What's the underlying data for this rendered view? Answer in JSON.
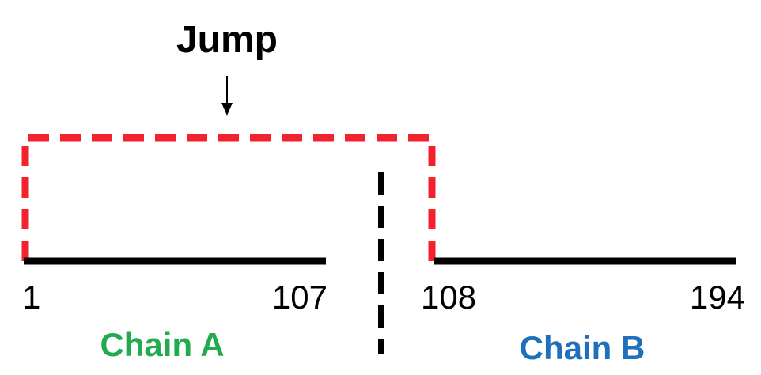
{
  "jump": {
    "label": "Jump"
  },
  "chain_a": {
    "label": "Chain A",
    "start": "1",
    "end": "107",
    "color": "#22aa4f"
  },
  "chain_b": {
    "label": "Chain B",
    "start": "108",
    "end": "194",
    "color": "#1f6fba"
  },
  "colors": {
    "line": "#000000",
    "jump_path": "#f2232f",
    "separator": "#000000"
  }
}
